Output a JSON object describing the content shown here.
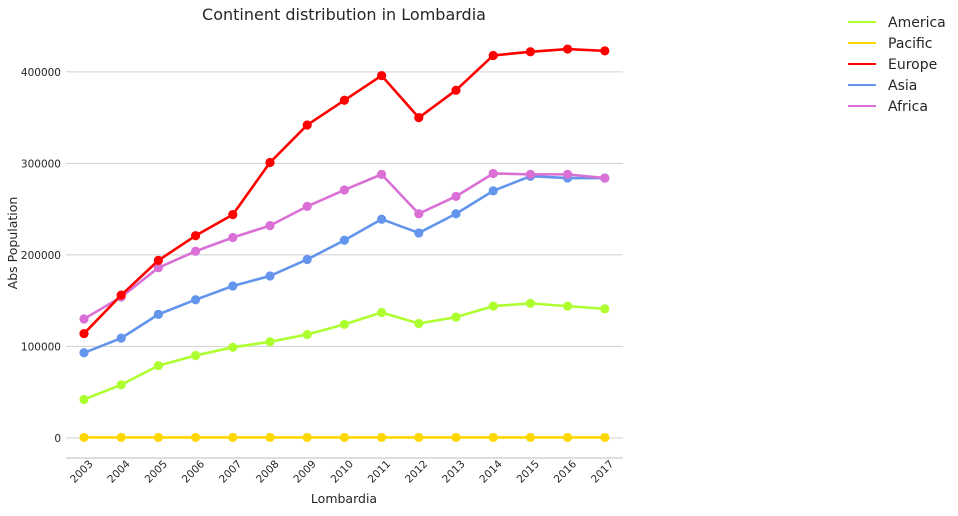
{
  "chart_data": {
    "type": "line",
    "title": "Continent distribution in Lombardia",
    "xlabel": "Lombardia",
    "ylabel": "Abs Population",
    "categories": [
      "2003",
      "2004",
      "2005",
      "2006",
      "2007",
      "2008",
      "2009",
      "2010",
      "2011",
      "2012",
      "2013",
      "2014",
      "2015",
      "2016",
      "2017"
    ],
    "ylim": [
      -22000,
      448000
    ],
    "yticks": [
      0,
      100000,
      200000,
      300000,
      400000
    ],
    "ytick_labels": [
      "0",
      "100000",
      "200000",
      "300000",
      "400000"
    ],
    "grid": "horizontal",
    "legend_position": "top-right, outside plot",
    "series": [
      {
        "name": "America",
        "color": "#adff2f",
        "values": [
          42000,
          58000,
          79000,
          90000,
          99000,
          105000,
          113000,
          124000,
          137000,
          125000,
          132000,
          144000,
          147000,
          144000,
          141000
        ]
      },
      {
        "name": "Pacific",
        "color": "#ffd700",
        "values": [
          500,
          500,
          500,
          500,
          500,
          500,
          500,
          500,
          500,
          500,
          500,
          500,
          500,
          500,
          500
        ]
      },
      {
        "name": "Europe",
        "color": "#ff0000",
        "values": [
          114000,
          156000,
          194000,
          221000,
          244000,
          301000,
          342000,
          369000,
          396000,
          350000,
          380000,
          418000,
          422000,
          425000,
          423000
        ]
      },
      {
        "name": "Asia",
        "color": "#6495ed",
        "values": [
          93000,
          109000,
          135000,
          151000,
          166000,
          177000,
          195000,
          216000,
          239000,
          224000,
          245000,
          270000,
          286000,
          284000,
          284000
        ]
      },
      {
        "name": "Africa",
        "color": "#da70d6",
        "values": [
          130000,
          154000,
          186000,
          204000,
          219000,
          232000,
          253000,
          271000,
          288000,
          245000,
          264000,
          289000,
          288000,
          288000,
          284000
        ]
      }
    ]
  }
}
